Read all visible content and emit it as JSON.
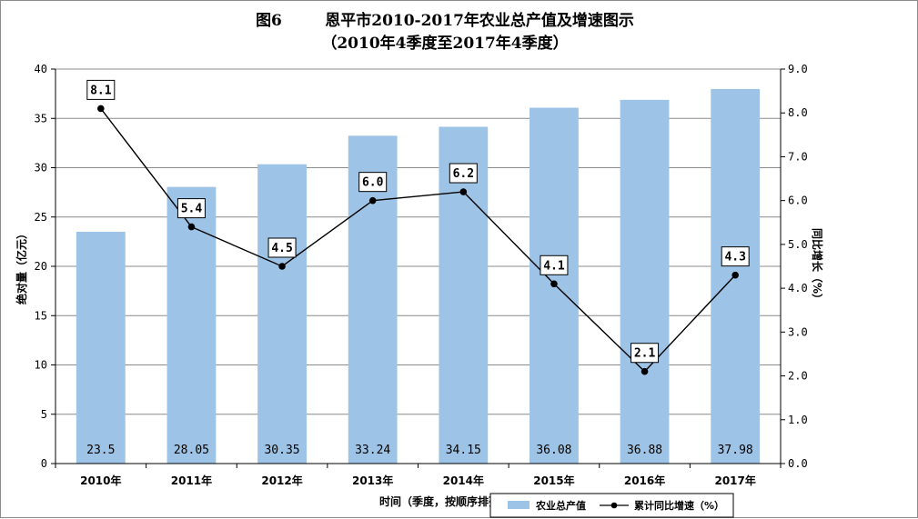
{
  "chart_data": {
    "type": "bar",
    "title": "图6        恩平市2010-2017年农业总产值及增速图示",
    "subtitle": "（2010年4季度至2017年4季度）",
    "categories": [
      "2010年",
      "2011年",
      "2012年",
      "2013年",
      "2014年",
      "2015年",
      "2016年",
      "2017年"
    ],
    "xlabel": "时间（季度，按顺序排列）",
    "ylabel": "绝对量（亿元）",
    "y2label": "同比增长（%）",
    "ylim": [
      0,
      40
    ],
    "y2lim": [
      0,
      9
    ],
    "yticks": [
      "0",
      "5",
      "10",
      "15",
      "20",
      "25",
      "30",
      "35",
      "40"
    ],
    "y2ticks": [
      "0.0",
      "1.0",
      "2.0",
      "3.0",
      "4.0",
      "5.0",
      "6.0",
      "7.0",
      "8.0",
      "9.0"
    ],
    "grid": true,
    "legend_position": "bottom-right",
    "series": [
      {
        "name": "农业总产值",
        "type": "bar",
        "axis": "left",
        "color": "#9dc3e6",
        "values": [
          23.5,
          28.05,
          30.35,
          33.24,
          34.15,
          36.08,
          36.88,
          37.98
        ],
        "labels": [
          "23.5",
          "28.05",
          "30.35",
          "33.24",
          "34.15",
          "36.08",
          "36.88",
          "37.98"
        ]
      },
      {
        "name": "累计同比增速（%）",
        "type": "line",
        "axis": "right",
        "color": "#000000",
        "values": [
          8.1,
          5.4,
          4.5,
          6.0,
          6.2,
          4.1,
          2.1,
          4.3
        ],
        "labels": [
          "8.1",
          "5.4",
          "4.5",
          "6.0",
          "6.2",
          "4.1",
          "2.1",
          "4.3"
        ]
      }
    ]
  }
}
